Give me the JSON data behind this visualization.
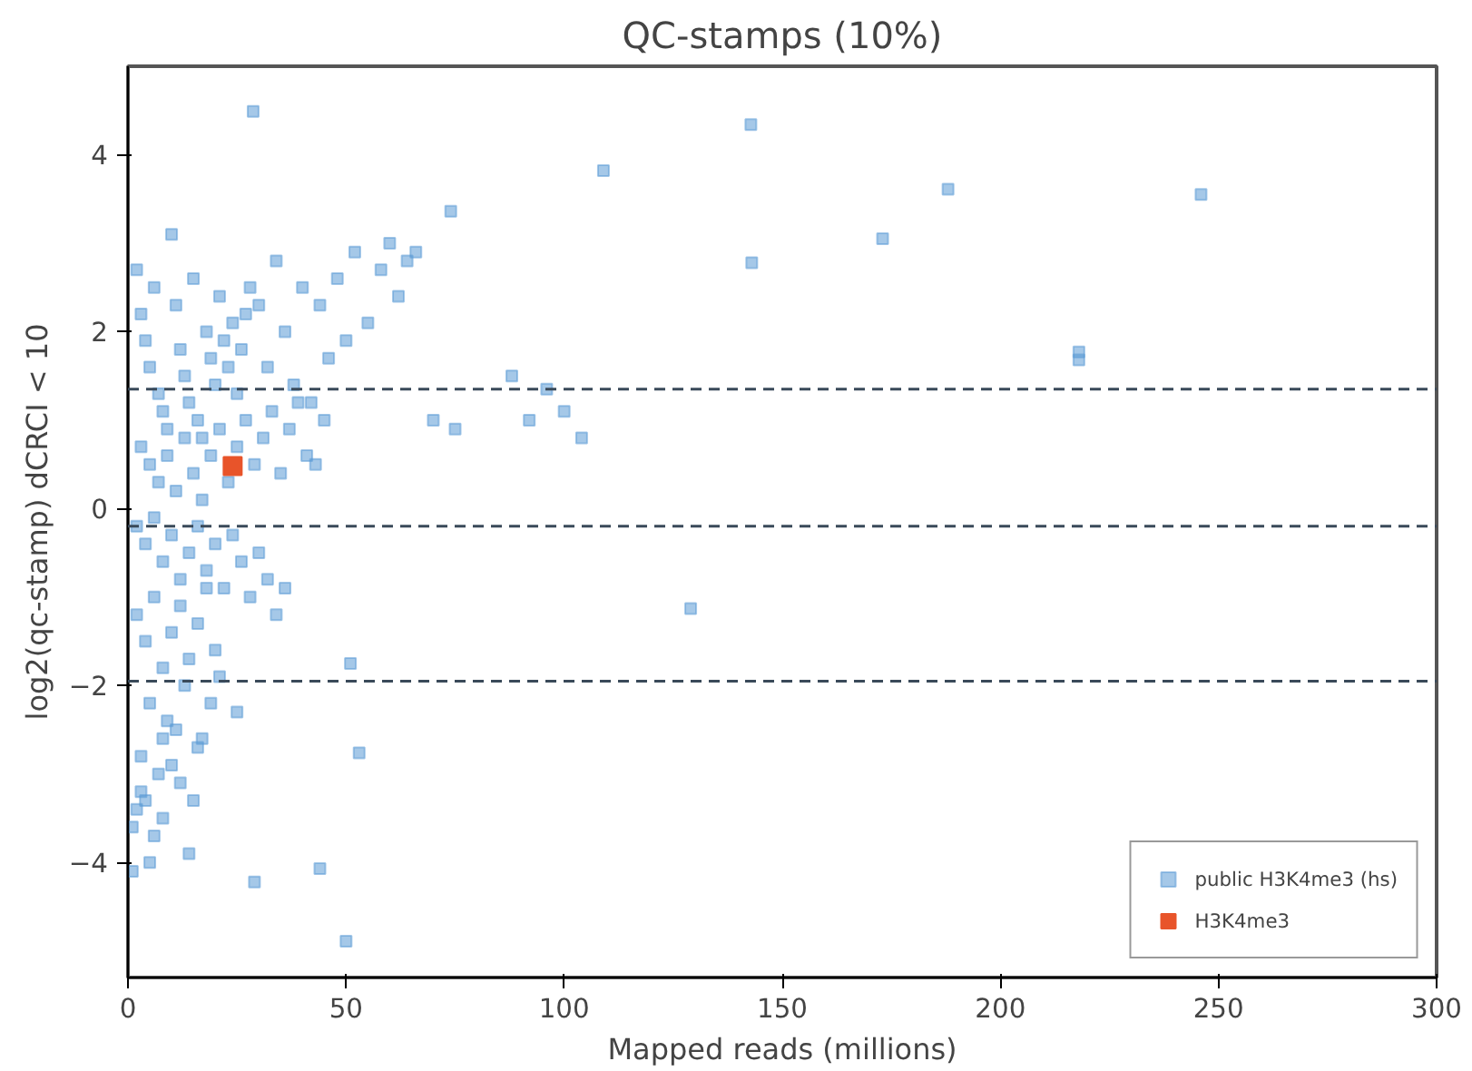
{
  "chart_data": {
    "type": "scatter",
    "title": "QC-stamps (10%)",
    "xlabel": "Mapped reads (millions)",
    "ylabel": "log2(qc-stamp) dCRCI < 10",
    "xlim": [
      0,
      300
    ],
    "ylim": [
      -5.3,
      5.0
    ],
    "xticks": [
      0,
      50,
      100,
      150,
      200,
      250,
      300
    ],
    "yticks": [
      -4,
      -2,
      0,
      2,
      4
    ],
    "grid": false,
    "legend": "bottom right",
    "marker": "square",
    "ref_lines": [
      {
        "axis": "y",
        "value": 1.35,
        "color": "#3a4a5a",
        "line_style": "dashed"
      },
      {
        "axis": "y",
        "value": -0.2,
        "color": "#3a4a5a",
        "line_style": "dashed"
      },
      {
        "axis": "y",
        "value": -1.95,
        "color": "#3a4a5a",
        "line_style": "dashed"
      }
    ],
    "series": [
      {
        "name": "public H3K4me3 (hs)",
        "color": "#5b9bd5",
        "x": [
          28.7,
          142.8,
          109,
          188,
          246,
          173,
          143,
          218,
          218,
          129,
          51,
          53,
          29,
          44,
          50,
          74,
          88,
          96,
          100,
          92,
          104,
          70,
          75,
          2,
          3,
          4,
          5,
          6,
          7,
          8,
          9,
          10,
          11,
          12,
          13,
          14,
          15,
          16,
          17,
          18,
          19,
          20,
          21,
          22,
          23,
          24,
          25,
          26,
          27,
          28,
          30,
          32,
          34,
          36,
          38,
          40,
          42,
          44,
          46,
          48,
          50,
          52,
          55,
          58,
          60,
          62,
          64,
          66,
          3,
          5,
          7,
          9,
          11,
          13,
          15,
          17,
          19,
          21,
          23,
          25,
          27,
          29,
          31,
          33,
          35,
          37,
          39,
          41,
          43,
          45,
          2,
          4,
          6,
          8,
          10,
          12,
          14,
          16,
          18,
          20,
          22,
          24,
          26,
          28,
          30,
          32,
          34,
          36,
          2,
          4,
          6,
          8,
          10,
          12,
          14,
          16,
          18,
          20,
          5,
          9,
          13,
          17,
          21,
          25,
          3,
          7,
          11,
          15,
          19,
          1,
          3,
          5,
          8,
          12,
          16,
          2,
          6,
          10,
          14,
          1,
          4,
          8
        ],
        "values": [
          4.49,
          4.34,
          3.82,
          3.61,
          3.55,
          3.05,
          2.78,
          1.77,
          1.68,
          -1.13,
          -1.75,
          -2.76,
          -4.22,
          -4.07,
          -4.89,
          3.36,
          1.5,
          1.35,
          1.1,
          1.0,
          0.8,
          1.0,
          0.9,
          2.7,
          2.2,
          1.9,
          1.6,
          2.5,
          1.3,
          1.1,
          0.9,
          3.1,
          2.3,
          1.8,
          1.5,
          1.2,
          2.6,
          1.0,
          0.8,
          2.0,
          1.7,
          1.4,
          2.4,
          1.9,
          1.6,
          2.1,
          1.3,
          1.8,
          2.2,
          2.5,
          2.3,
          1.6,
          2.8,
          2.0,
          1.4,
          2.5,
          1.2,
          2.3,
          1.7,
          2.6,
          1.9,
          2.9,
          2.1,
          2.7,
          3.0,
          2.4,
          2.8,
          2.9,
          0.7,
          0.5,
          0.3,
          0.6,
          0.2,
          0.8,
          0.4,
          0.1,
          0.6,
          0.9,
          0.3,
          0.7,
          1.0,
          0.5,
          0.8,
          1.1,
          0.4,
          0.9,
          1.2,
          0.6,
          0.5,
          1.0,
          -0.2,
          -0.4,
          -0.1,
          -0.6,
          -0.3,
          -0.8,
          -0.5,
          -0.2,
          -0.7,
          -0.4,
          -0.9,
          -0.3,
          -0.6,
          -1.0,
          -0.5,
          -0.8,
          -1.2,
          -0.9,
          -1.2,
          -1.5,
          -1.0,
          -1.8,
          -1.4,
          -1.1,
          -1.7,
          -1.3,
          -0.9,
          -1.6,
          -2.2,
          -2.4,
          -2.0,
          -2.6,
          -1.9,
          -2.3,
          -2.8,
          -3.0,
          -2.5,
          -3.3,
          -2.2,
          -3.6,
          -3.2,
          -4.0,
          -3.5,
          -3.1,
          -2.7,
          -3.4,
          -3.7,
          -2.9,
          -3.9,
          -4.1,
          -3.3,
          -2.6
        ]
      },
      {
        "name": "H3K4me3",
        "color": "#e8542a",
        "x": [
          24
        ],
        "values": [
          0.48
        ]
      }
    ]
  }
}
